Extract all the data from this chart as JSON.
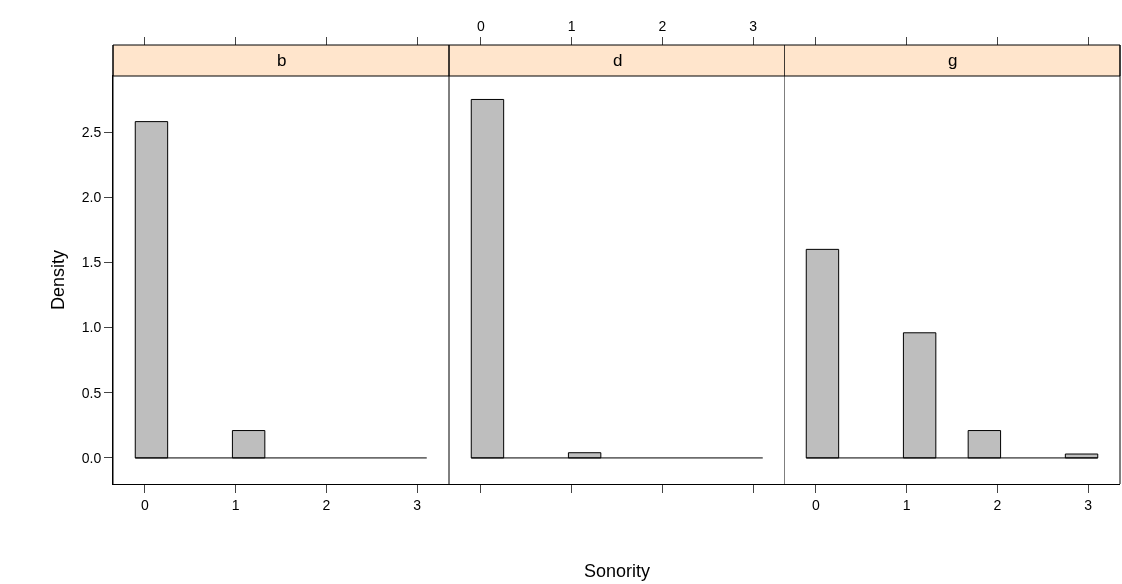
{
  "chart_data": [
    {
      "type": "histogram",
      "title": "b",
      "ylabel": "Density",
      "bins": [
        -0.105,
        0.252,
        0.608,
        0.965,
        1.322,
        1.678,
        2.035,
        2.392,
        2.748,
        3.105
      ],
      "values": [
        2.58,
        0,
        0,
        0.21,
        0,
        0,
        0,
        0,
        0
      ],
      "color": "#bebebe",
      "xlim": [
        -0.35,
        3.35
      ],
      "xticks": [
        0,
        1,
        2,
        3
      ],
      "ylim": [
        -0.2,
        2.93
      ],
      "yticks": [
        {
          "value": 0,
          "label": "0.0"
        },
        0.5,
        {
          "value": 1,
          "label": "1.0"
        },
        1.5,
        {
          "value": 2,
          "label": "2.0"
        },
        2.5
      ],
      "legend": false
    },
    {
      "type": "histogram",
      "title": "d",
      "xlabel": "Sonority",
      "bins": [
        -0.105,
        0.252,
        0.608,
        0.965,
        1.322,
        1.678,
        2.035,
        2.392,
        2.748,
        3.105
      ],
      "values": [
        2.75,
        0,
        0,
        0.04,
        0,
        0,
        0,
        0,
        0
      ],
      "color": "#bebebe",
      "xlim": [
        -0.35,
        3.35
      ],
      "xticks": [
        {
          "value": 0,
          "label": null
        },
        {
          "value": 1,
          "label": null
        },
        {
          "value": 2,
          "label": null
        },
        {
          "value": 3,
          "label": null
        }
      ],
      "x2lim": [
        -0.35,
        3.35
      ],
      "x2ticks": [
        0,
        1,
        2,
        3
      ],
      "ylim": [
        -0.2,
        2.93
      ],
      "yticks": [
        {
          "value": 0,
          "label": null
        },
        {
          "value": 2.5,
          "label": null
        }
      ],
      "tick_labels": false,
      "legend": false
    },
    {
      "type": "histogram",
      "title": "g",
      "bins": [
        -0.105,
        0.252,
        0.608,
        0.965,
        1.322,
        1.678,
        2.035,
        2.392,
        2.748,
        3.105
      ],
      "values": [
        1.6,
        0,
        0,
        0.96,
        0,
        0.21,
        0,
        0,
        0.03
      ],
      "color": "#bebebe",
      "xlim": [
        -0.35,
        3.35
      ],
      "xticks": [
        0,
        1,
        2,
        3
      ],
      "ylim": [
        -0.2,
        2.93
      ],
      "yticks": [
        {
          "value": 0,
          "label": null
        },
        {
          "value": 2.5,
          "label": null
        }
      ],
      "tick_labels": "x",
      "legend": false
    }
  ]
}
